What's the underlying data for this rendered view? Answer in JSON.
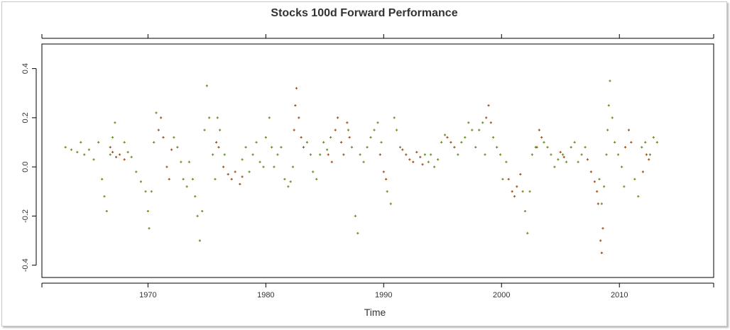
{
  "chart_data": {
    "type": "scatter",
    "title": "Stocks 100d Forward Performance",
    "xlabel": "Time",
    "ylabel": "",
    "xlim": [
      1961,
      2018
    ],
    "ylim": [
      -0.45,
      0.5
    ],
    "x_ticks": [
      1970,
      1980,
      1990,
      2000,
      2010
    ],
    "y_ticks": [
      -0.4,
      -0.2,
      0.0,
      0.2,
      0.4
    ],
    "y_tick_labels": [
      "-0.4",
      "-0.2",
      "0.0",
      "0.2",
      "0.4"
    ],
    "grid": false,
    "legend": "none",
    "colors": {
      "up_regime": "#6b8e23",
      "down_regime": "#a0521e",
      "axis": "#000000",
      "text": "#333333"
    },
    "series": [
      {
        "color": "#6b8e23",
        "points": [
          [
            1963.0,
            0.08
          ],
          [
            1963.5,
            0.07
          ],
          [
            1964.0,
            0.06
          ],
          [
            1964.3,
            0.1
          ],
          [
            1964.6,
            0.05
          ],
          [
            1965.0,
            0.07
          ],
          [
            1965.4,
            0.03
          ],
          [
            1965.8,
            0.1
          ],
          [
            1966.1,
            -0.05
          ],
          [
            1966.3,
            -0.12
          ],
          [
            1966.5,
            -0.18
          ],
          [
            1966.8,
            0.05
          ],
          [
            1967.0,
            0.12
          ],
          [
            1967.2,
            0.18
          ],
          [
            1968.0,
            0.1
          ],
          [
            1968.3,
            0.06
          ],
          [
            1968.6,
            0.04
          ],
          [
            1969.0,
            -0.02
          ],
          [
            1969.4,
            -0.06
          ],
          [
            1969.8,
            -0.1
          ],
          [
            1970.0,
            -0.18
          ],
          [
            1970.1,
            -0.25
          ],
          [
            1970.3,
            -0.1
          ],
          [
            1970.5,
            0.1
          ],
          [
            1970.7,
            0.22
          ],
          [
            1972.2,
            0.12
          ],
          [
            1972.5,
            0.08
          ],
          [
            1972.8,
            0.02
          ],
          [
            1973.0,
            -0.05
          ],
          [
            1973.3,
            -0.08
          ],
          [
            1973.5,
            0.02
          ],
          [
            1973.8,
            -0.05
          ],
          [
            1974.0,
            -0.12
          ],
          [
            1974.2,
            -0.2
          ],
          [
            1974.4,
            -0.3
          ],
          [
            1974.6,
            -0.18
          ],
          [
            1974.8,
            0.15
          ],
          [
            1975.0,
            0.33
          ],
          [
            1975.2,
            0.2
          ],
          [
            1975.5,
            0.05
          ],
          [
            1975.7,
            -0.05
          ],
          [
            1975.9,
            0.2
          ],
          [
            1976.1,
            0.15
          ],
          [
            1976.5,
            0.05
          ],
          [
            1978.0,
            0.03
          ],
          [
            1978.3,
            0.08
          ],
          [
            1978.6,
            -0.02
          ],
          [
            1978.9,
            0.05
          ],
          [
            1979.2,
            0.1
          ],
          [
            1979.5,
            0.02
          ],
          [
            1979.8,
            0.0
          ],
          [
            1980.0,
            0.12
          ],
          [
            1980.3,
            0.2
          ],
          [
            1980.5,
            0.08
          ],
          [
            1980.7,
            0.0
          ],
          [
            1981.0,
            0.05
          ],
          [
            1981.3,
            0.08
          ],
          [
            1981.6,
            -0.05
          ],
          [
            1981.9,
            -0.08
          ],
          [
            1982.1,
            -0.06
          ],
          [
            1982.3,
            0.0
          ],
          [
            1983.5,
            0.1
          ],
          [
            1983.8,
            0.05
          ],
          [
            1984.0,
            -0.02
          ],
          [
            1984.3,
            -0.05
          ],
          [
            1984.6,
            0.05
          ],
          [
            1984.9,
            0.1
          ],
          [
            1985.2,
            0.07
          ],
          [
            1985.5,
            0.12
          ],
          [
            1987.0,
            0.15
          ],
          [
            1987.3,
            0.08
          ],
          [
            1987.6,
            -0.2
          ],
          [
            1987.8,
            -0.27
          ],
          [
            1988.0,
            0.05
          ],
          [
            1988.3,
            0.02
          ],
          [
            1988.6,
            0.08
          ],
          [
            1988.9,
            0.12
          ],
          [
            1989.2,
            0.15
          ],
          [
            1989.5,
            0.18
          ],
          [
            1989.8,
            0.1
          ],
          [
            1990.3,
            -0.1
          ],
          [
            1990.6,
            -0.15
          ],
          [
            1990.9,
            0.2
          ],
          [
            1991.1,
            0.15
          ],
          [
            1991.4,
            0.08
          ],
          [
            1993.5,
            0.05
          ],
          [
            1993.8,
            0.02
          ],
          [
            1994.0,
            0.05
          ],
          [
            1994.3,
            0.0
          ],
          [
            1994.6,
            0.03
          ],
          [
            1994.9,
            0.1
          ],
          [
            1995.2,
            0.13
          ],
          [
            1996.3,
            0.05
          ],
          [
            1996.6,
            0.1
          ],
          [
            1996.9,
            0.12
          ],
          [
            1997.2,
            0.18
          ],
          [
            1997.5,
            0.15
          ],
          [
            1997.8,
            0.08
          ],
          [
            1998.1,
            0.15
          ],
          [
            1998.4,
            0.18
          ],
          [
            1998.6,
            0.05
          ],
          [
            1999.3,
            0.12
          ],
          [
            1999.6,
            0.08
          ],
          [
            1999.9,
            0.05
          ],
          [
            2000.1,
            -0.05
          ],
          [
            2000.4,
            0.02
          ],
          [
            2001.8,
            -0.1
          ],
          [
            2002.0,
            -0.18
          ],
          [
            2002.2,
            -0.27
          ],
          [
            2002.4,
            -0.1
          ],
          [
            2002.6,
            0.05
          ],
          [
            2002.9,
            0.08
          ],
          [
            2003.6,
            0.1
          ],
          [
            2003.9,
            0.08
          ],
          [
            2004.2,
            0.05
          ],
          [
            2004.5,
            0.0
          ],
          [
            2004.8,
            0.03
          ],
          [
            2005.2,
            0.05
          ],
          [
            2005.5,
            0.02
          ],
          [
            2005.9,
            0.08
          ],
          [
            2006.2,
            0.1
          ],
          [
            2006.5,
            0.02
          ],
          [
            2006.8,
            0.05
          ],
          [
            2007.1,
            0.08
          ],
          [
            2008.3,
            -0.05
          ],
          [
            2008.5,
            -0.15
          ],
          [
            2008.7,
            -0.08
          ],
          [
            2008.9,
            0.05
          ],
          [
            2009.0,
            0.15
          ],
          [
            2009.1,
            0.25
          ],
          [
            2009.2,
            0.35
          ],
          [
            2009.4,
            0.2
          ],
          [
            2009.6,
            0.1
          ],
          [
            2009.9,
            0.05
          ],
          [
            2010.2,
            0.0
          ],
          [
            2010.4,
            -0.08
          ],
          [
            2011.3,
            -0.05
          ],
          [
            2011.6,
            -0.12
          ],
          [
            2011.9,
            0.08
          ],
          [
            2012.2,
            0.1
          ],
          [
            2012.6,
            0.05
          ],
          [
            2012.9,
            0.12
          ],
          [
            2013.2,
            0.1
          ]
        ]
      },
      {
        "color": "#a0521e",
        "points": [
          [
            1966.8,
            0.08
          ],
          [
            1967.0,
            0.06
          ],
          [
            1967.3,
            0.04
          ],
          [
            1967.6,
            0.05
          ],
          [
            1968.0,
            0.03
          ],
          [
            1970.9,
            0.15
          ],
          [
            1971.1,
            0.2
          ],
          [
            1971.3,
            0.12
          ],
          [
            1971.6,
            0.0
          ],
          [
            1971.8,
            -0.05
          ],
          [
            1972.0,
            0.07
          ],
          [
            1975.8,
            0.1
          ],
          [
            1976.0,
            0.08
          ],
          [
            1976.4,
            0.0
          ],
          [
            1976.8,
            -0.03
          ],
          [
            1977.1,
            -0.05
          ],
          [
            1977.4,
            -0.02
          ],
          [
            1977.8,
            -0.07
          ],
          [
            1978.0,
            -0.04
          ],
          [
            1982.4,
            0.15
          ],
          [
            1982.5,
            0.25
          ],
          [
            1982.6,
            0.32
          ],
          [
            1982.8,
            0.2
          ],
          [
            1983.0,
            0.12
          ],
          [
            1983.2,
            0.08
          ],
          [
            1985.3,
            0.05
          ],
          [
            1985.6,
            0.02
          ],
          [
            1985.9,
            0.15
          ],
          [
            1986.1,
            0.2
          ],
          [
            1986.4,
            0.1
          ],
          [
            1986.6,
            0.05
          ],
          [
            1986.9,
            0.18
          ],
          [
            1987.1,
            0.12
          ],
          [
            1989.7,
            0.05
          ],
          [
            1990.0,
            -0.02
          ],
          [
            1990.2,
            -0.05
          ],
          [
            1991.6,
            0.07
          ],
          [
            1991.9,
            0.05
          ],
          [
            1992.2,
            0.03
          ],
          [
            1992.5,
            0.02
          ],
          [
            1992.8,
            0.06
          ],
          [
            1993.1,
            0.04
          ],
          [
            1993.3,
            0.01
          ],
          [
            1995.4,
            0.12
          ],
          [
            1995.7,
            0.1
          ],
          [
            1996.0,
            0.08
          ],
          [
            1998.7,
            0.2
          ],
          [
            1998.9,
            0.25
          ],
          [
            1999.1,
            0.18
          ],
          [
            2000.6,
            -0.05
          ],
          [
            2000.9,
            -0.1
          ],
          [
            2001.1,
            -0.12
          ],
          [
            2001.3,
            -0.08
          ],
          [
            2001.6,
            -0.03
          ],
          [
            2003.0,
            0.08
          ],
          [
            2003.2,
            0.15
          ],
          [
            2003.4,
            0.12
          ],
          [
            2005.0,
            0.06
          ],
          [
            2005.3,
            0.04
          ],
          [
            2007.3,
            0.03
          ],
          [
            2007.6,
            -0.02
          ],
          [
            2007.9,
            -0.06
          ],
          [
            2008.1,
            -0.1
          ],
          [
            2008.2,
            -0.15
          ],
          [
            2008.4,
            -0.3
          ],
          [
            2008.5,
            -0.35
          ],
          [
            2008.6,
            -0.25
          ],
          [
            2010.5,
            0.08
          ],
          [
            2010.8,
            0.15
          ],
          [
            2011.0,
            0.1
          ],
          [
            2012.0,
            -0.02
          ],
          [
            2012.3,
            0.05
          ],
          [
            2012.5,
            0.03
          ]
        ]
      }
    ]
  }
}
